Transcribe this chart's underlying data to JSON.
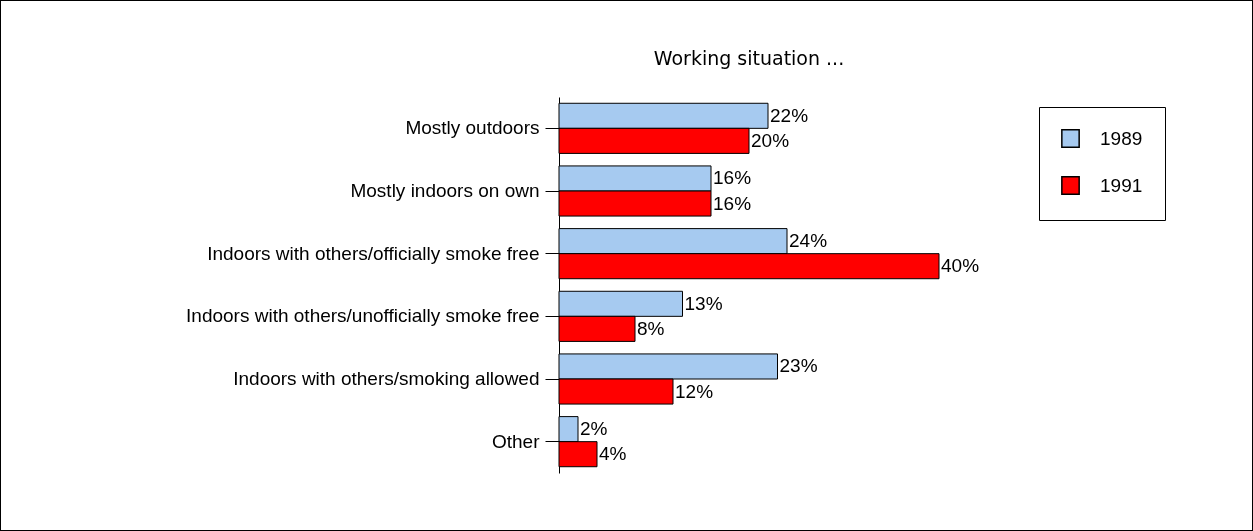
{
  "chart_data": {
    "type": "bar",
    "orientation": "horizontal",
    "title": "Working situation ...",
    "categories": [
      "Mostly outdoors",
      "Mostly indoors on own",
      "Indoors with others/officially smoke free",
      "Indoors with others/unofficially smoke free",
      "Indoors with others/smoking allowed",
      "Other"
    ],
    "series": [
      {
        "name": "1989",
        "color": "#a6caf0",
        "values": [
          22,
          16,
          24,
          13,
          23,
          2
        ],
        "value_labels": [
          "22%",
          "16%",
          "24%",
          "13%",
          "23%",
          "2%"
        ]
      },
      {
        "name": "1991",
        "color": "#ff0000",
        "values": [
          20,
          16,
          40,
          8,
          12,
          4
        ],
        "value_labels": [
          "20%",
          "16%",
          "40%",
          "8%",
          "12%",
          "4%"
        ]
      }
    ],
    "legend": "top right"
  }
}
